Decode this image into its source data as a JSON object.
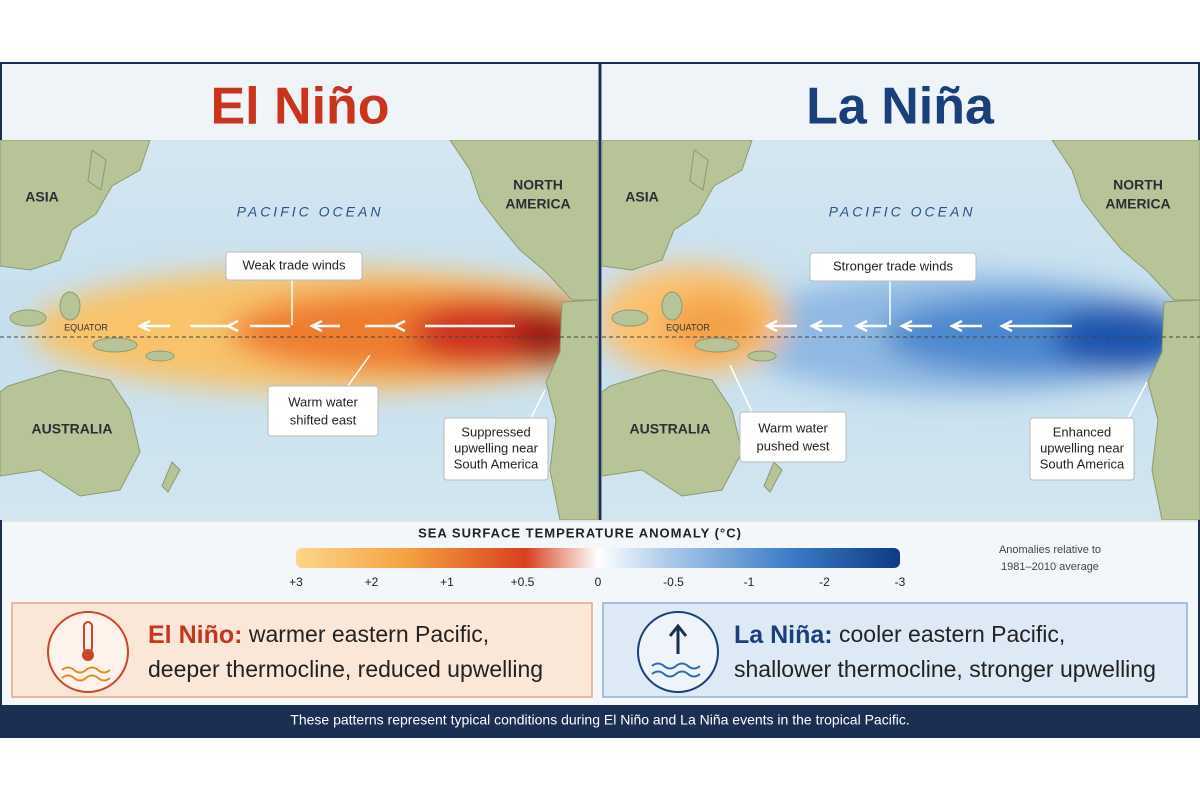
{
  "panels": [
    {
      "title": "El Niño",
      "asia": "ASIA",
      "north_america": [
        "NORTH",
        "AMERICA"
      ],
      "ocean": "PACIFIC OCEAN",
      "equator": "EQUATOR",
      "australia": "AUSTRALIA",
      "callouts": [
        [
          "Weak trade winds"
        ],
        [
          "Warm water",
          "shifted east"
        ],
        [
          "Suppressed",
          "upwelling near",
          "South America"
        ]
      ]
    },
    {
      "title": "La Niña",
      "asia": "ASIA",
      "north_america": [
        "NORTH",
        "AMERICA"
      ],
      "ocean": "PACIFIC OCEAN",
      "equator": "EQUATOR",
      "australia": "AUSTRALIA",
      "callouts": [
        [
          "Stronger trade winds"
        ],
        [
          "Warm water",
          "pushed west"
        ],
        [
          "Enhanced",
          "upwelling near",
          "South America"
        ]
      ]
    }
  ],
  "legend": {
    "title": "SEA SURFACE TEMPERATURE ANOMALY (°C)",
    "ticks": [
      "+3",
      "+2",
      "+1",
      "+0.5",
      "0",
      "-0.5",
      "-1",
      "-2",
      "-3"
    ],
    "note": [
      "Anomalies relative to",
      "1981–2010 average"
    ]
  },
  "summaries": [
    {
      "label": "El Niño:",
      "lines": [
        "warmer eastern Pacific,",
        "deeper thermocline, reduced upwelling"
      ]
    },
    {
      "label": "La Niña:",
      "lines": [
        "cooler eastern Pacific,",
        "shallower thermocline, stronger upwelling"
      ]
    }
  ],
  "footer": "These patterns represent typical conditions during El Niño and La Niña events in the tropical Pacific."
}
